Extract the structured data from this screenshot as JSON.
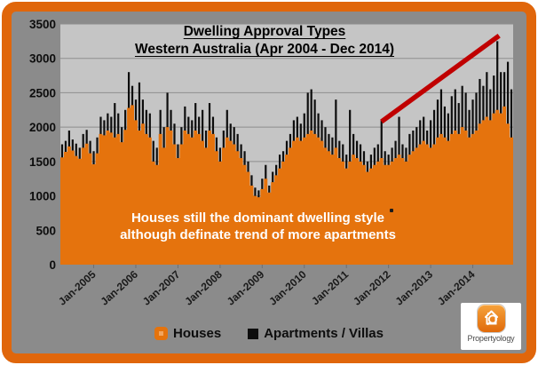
{
  "window": {
    "outer_color": "#ffffff",
    "frame_color": "#e0660b",
    "background_color": "#8b8b8b",
    "plot_background_color": "#c5c5c5"
  },
  "chart_data": {
    "type": "bar",
    "subtype": "stacked area (Houses) with monthly bars (Apartments/Villas) and red trend line",
    "title_line1": "Dwelling Approval Types",
    "title_line2": "Western Australia (Apr 2004 - Dec 2014)",
    "xlabel": "",
    "ylabel": "",
    "ylim": [
      0,
      3500
    ],
    "y_ticks": [
      0,
      500,
      1000,
      1500,
      2000,
      2500,
      3000,
      3500
    ],
    "x_tick_labels": [
      "Jan-2005",
      "Jan-2006",
      "Jan-2007",
      "Jan-2008",
      "Jan-2009",
      "Jan-2010",
      "Jan-2011",
      "Jan-2012",
      "Jan-2013",
      "Jan-2014"
    ],
    "x_start": "Apr-2004",
    "x_end": "Dec-2014",
    "grid": true,
    "legend_position": "bottom",
    "series": [
      {
        "name": "Houses",
        "type": "area",
        "color": "#e5730d",
        "values": [
          1560,
          1640,
          1720,
          1660,
          1580,
          1540,
          1700,
          1760,
          1620,
          1460,
          1620,
          1900,
          1880,
          1950,
          1920,
          1850,
          1900,
          1780,
          1960,
          2280,
          2320,
          2100,
          1950,
          2050,
          1900,
          1850,
          1500,
          1450,
          1900,
          1700,
          2000,
          1950,
          1750,
          1550,
          1750,
          1950,
          1900,
          1850,
          1950,
          1900,
          1800,
          1700,
          1950,
          1900,
          1650,
          1500,
          1700,
          1850,
          1800,
          1750,
          1650,
          1550,
          1450,
          1350,
          1150,
          1000,
          980,
          1100,
          1250,
          1050,
          1200,
          1300,
          1400,
          1500,
          1600,
          1700,
          1800,
          1850,
          1800,
          1850,
          1900,
          1950,
          1900,
          1850,
          1800,
          1700,
          1650,
          1600,
          1700,
          1550,
          1500,
          1400,
          1500,
          1600,
          1550,
          1500,
          1450,
          1350,
          1400,
          1450,
          1500,
          1550,
          1450,
          1450,
          1500,
          1550,
          1600,
          1550,
          1500,
          1600,
          1650,
          1700,
          1750,
          1800,
          1750,
          1700,
          1750,
          1850,
          1900,
          1850,
          1800,
          1900,
          1950,
          1900,
          2000,
          1950,
          1850,
          1900,
          1950,
          2050,
          2100,
          2150,
          2100,
          2200,
          2250,
          2200,
          2300,
          2050,
          1850
        ]
      },
      {
        "name": "Apartments / Villas",
        "type": "bar",
        "stacked_on": "Houses",
        "color": "#0d0d0d",
        "values": [
          190,
          160,
          230,
          160,
          180,
          160,
          200,
          200,
          180,
          190,
          230,
          250,
          220,
          250,
          230,
          500,
          300,
          220,
          290,
          520,
          280,
          300,
          700,
          350,
          350,
          350,
          300,
          250,
          350,
          300,
          500,
          300,
          300,
          200,
          250,
          350,
          250,
          250,
          400,
          250,
          450,
          250,
          400,
          250,
          200,
          200,
          250,
          400,
          250,
          250,
          250,
          200,
          200,
          150,
          150,
          120,
          100,
          150,
          200,
          100,
          150,
          150,
          200,
          150,
          200,
          200,
          300,
          300,
          250,
          350,
          600,
          600,
          500,
          350,
          300,
          300,
          250,
          250,
          700,
          250,
          250,
          200,
          750,
          300,
          250,
          250,
          200,
          150,
          200,
          250,
          250,
          550,
          200,
          150,
          200,
          250,
          550,
          200,
          200,
          300,
          300,
          300,
          350,
          350,
          200,
          400,
          500,
          550,
          650,
          450,
          400,
          550,
          600,
          450,
          600,
          550,
          400,
          500,
          550,
          650,
          500,
          650,
          450,
          550,
          1000,
          600,
          500,
          900,
          700
        ]
      }
    ],
    "trend_line": {
      "color": "#c00000",
      "from_month": "Nov-2011",
      "from_value": 2080,
      "from_index": 91,
      "to_month": "Sep-2014",
      "to_value": 3330,
      "to_index": 124.5
    }
  },
  "annotation": {
    "line1": "Houses still the dominant dwelling style",
    "line2": "although definate trend of more apartments",
    "color": "#ffffff"
  },
  "legend": {
    "items": [
      {
        "label": "Houses",
        "color": "#e5730d"
      },
      {
        "label": "Apartments / Villas",
        "color": "#0d0d0d"
      }
    ]
  },
  "logo": {
    "text": "Propertyology"
  }
}
